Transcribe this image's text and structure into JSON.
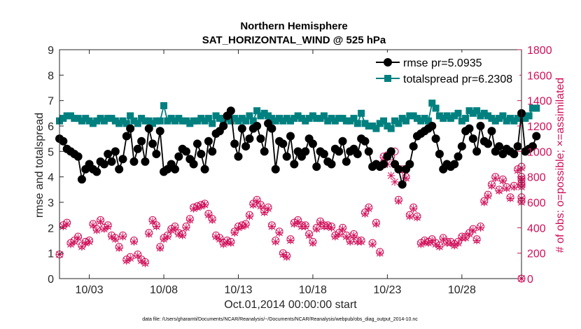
{
  "chart_data": {
    "type": "line",
    "title": "Northern Hemisphere",
    "subtitle": "SAT_HORIZONTAL_WIND @ 525 hPa",
    "xlabel": "Oct.01,2014 00:00:00 start",
    "ylabel_left": "rmse and totalspread",
    "ylabel_right": "# of obs: o=possible; ×=assimilated",
    "footnote": "data file: /Users/gharamti/Documents/NCAR/Reanalysis/~/Documents/NCAR/Reanalysis/webpub/obs_diag_output_2014-10.nc",
    "x_ticks": [
      {
        "day": 3,
        "label": "10/03"
      },
      {
        "day": 8,
        "label": "10/08"
      },
      {
        "day": 13,
        "label": "10/13"
      },
      {
        "day": 18,
        "label": "10/18"
      },
      {
        "day": 23,
        "label": "10/23"
      },
      {
        "day": 28,
        "label": "10/28"
      }
    ],
    "xlim": [
      1,
      32
    ],
    "ylim_left": [
      0,
      9
    ],
    "ylim_right": [
      0,
      1800
    ],
    "y_ticks_left": [
      "0",
      "1",
      "2",
      "3",
      "4",
      "5",
      "6",
      "7",
      "8",
      "9"
    ],
    "y_ticks_right": [
      "0",
      "200",
      "400",
      "600",
      "800",
      "1000",
      "1200",
      "1400",
      "1600",
      "1800"
    ],
    "legend_position": "top-right",
    "colors": {
      "rmse": "#000000",
      "totalspread": "#00807f",
      "obs": "#d0105a",
      "tick_text": "#262626"
    },
    "series": [
      {
        "name": "rmse",
        "label": "rmse pr=5.0935",
        "x_start": 1.0,
        "x_step": 0.25,
        "values": [
          5.5,
          5.4,
          5.1,
          5.0,
          4.9,
          4.8,
          3.9,
          4.3,
          4.5,
          4.3,
          4.2,
          4.6,
          4.5,
          4.9,
          4.6,
          5.0,
          4.3,
          4.7,
          5.6,
          5.9,
          4.6,
          5.1,
          5.4,
          4.6,
          5.9,
          5.3,
          4.9,
          5.8,
          4.2,
          4.3,
          4.5,
          4.3,
          4.8,
          5.1,
          5.0,
          4.7,
          4.5,
          5.3,
          4.9,
          4.3,
          5.4,
          5.0,
          5.7,
          5.8,
          6.0,
          6.4,
          6.6,
          5.3,
          4.8,
          5.9,
          5.2,
          5.5,
          5.9,
          6.0,
          5.5,
          5.0,
          6.1,
          5.9,
          4.3,
          5.4,
          5.3,
          4.8,
          5.6,
          4.5,
          5.0,
          4.8,
          5.0,
          5.5,
          5.3,
          4.4,
          5.0,
          4.9,
          4.6,
          4.5,
          5.1,
          5.0,
          5.4,
          4.6,
          5.0,
          5.1,
          4.9,
          5.5,
          5.4,
          5.0,
          4.4,
          4.5,
          4.4,
          4.5,
          4.8,
          5.0,
          4.5,
          4.3,
          3.7,
          4.3,
          4.5,
          5.2,
          5.6,
          5.7,
          5.8,
          5.9,
          6.0,
          5.5,
          4.9,
          4.3,
          4.5,
          4.4,
          4.5,
          4.8,
          5.2,
          5.8,
          5.9,
          5.5,
          5.0,
          6.0,
          5.4,
          5.3,
          5.8,
          5.0,
          5.2,
          4.9,
          5.1,
          5.0,
          4.9,
          5.2,
          6.5,
          5.0,
          5.1,
          5.2,
          5.6
        ]
      },
      {
        "name": "totalspread",
        "label": "totalspread pr=6.2308",
        "x_start": 1.0,
        "x_step": 0.25,
        "values": [
          6.2,
          6.3,
          6.4,
          6.4,
          6.3,
          6.3,
          6.2,
          6.3,
          6.2,
          6.1,
          6.2,
          6.3,
          6.2,
          6.3,
          6.3,
          6.2,
          6.1,
          6.2,
          6.1,
          6.4,
          6.2,
          6.1,
          6.3,
          6.2,
          6.2,
          6.1,
          6.2,
          6.2,
          6.8,
          6.2,
          6.3,
          6.2,
          6.3,
          6.2,
          6.2,
          6.1,
          6.2,
          6.2,
          6.3,
          6.2,
          6.3,
          6.1,
          6.4,
          6.3,
          6.2,
          6.3,
          6.2,
          6.3,
          6.2,
          6.3,
          6.2,
          6.4,
          6.2,
          6.6,
          6.4,
          6.5,
          6.4,
          6.3,
          6.2,
          6.3,
          6.2,
          6.3,
          6.2,
          6.3,
          6.4,
          6.3,
          6.2,
          6.3,
          6.4,
          6.3,
          6.3,
          6.4,
          6.2,
          6.3,
          6.2,
          6.3,
          6.3,
          6.2,
          6.2,
          6.3,
          6.1,
          6.5,
          6.1,
          6.0,
          6.0,
          5.9,
          6.1,
          6.2,
          6.0,
          5.9,
          6.2,
          6.1,
          6.3,
          6.2,
          6.4,
          6.4,
          6.3,
          6.2,
          6.3,
          6.2,
          6.9,
          6.7,
          6.4,
          6.3,
          6.4,
          6.3,
          6.4,
          6.5,
          6.2,
          6.3,
          6.6,
          6.5,
          6.6,
          6.4,
          6.5,
          6.4,
          6.3,
          6.2,
          6.3,
          6.4,
          6.2,
          6.3,
          6.2,
          6.3,
          6.4,
          6.3,
          6.4,
          6.7,
          6.7
        ]
      },
      {
        "name": "obs_possible",
        "marker": "o",
        "x_start": 1.0,
        "x_step": 0.25,
        "values": [
          190,
          420,
          440,
          280,
          300,
          330,
          260,
          290,
          300,
          430,
          390,
          460,
          400,
          420,
          340,
          320,
          250,
          340,
          150,
          170,
          300,
          190,
          150,
          130,
          360,
          460,
          420,
          250,
          320,
          340,
          390,
          410,
          360,
          350,
          410,
          470,
          560,
          570,
          580,
          590,
          510,
          470,
          340,
          320,
          280,
          300,
          290,
          370,
          410,
          420,
          430,
          500,
          590,
          620,
          580,
          530,
          560,
          420,
          300,
          370,
          200,
          180,
          310,
          440,
          460,
          420,
          420,
          350,
          290,
          400,
          450,
          420,
          420,
          410,
          340,
          360,
          400,
          340,
          300,
          350,
          300,
          300,
          520,
          560,
          280,
          440,
          210,
          960,
          970,
          960,
          1000,
          620,
          860,
          800,
          500,
          560,
          490,
          280,
          300,
          290,
          310,
          280,
          260,
          320,
          290,
          290,
          270,
          290,
          330,
          330,
          360,
          390,
          310,
          410,
          610,
          660,
          740,
          800,
          700,
          780,
          720,
          640,
          730,
          860,
          880,
          750,
          780,
          800,
          730,
          640,
          610,
          0
        ]
      },
      {
        "name": "obs_assimilated",
        "marker": "x",
        "x_start": 1.0,
        "x_step": 0.25,
        "values": [
          190,
          410,
          430,
          270,
          290,
          320,
          250,
          280,
          290,
          420,
          380,
          450,
          390,
          410,
          330,
          310,
          240,
          330,
          140,
          160,
          290,
          180,
          140,
          120,
          350,
          450,
          410,
          240,
          310,
          330,
          380,
          400,
          350,
          340,
          400,
          460,
          550,
          560,
          570,
          580,
          500,
          460,
          330,
          310,
          270,
          290,
          280,
          360,
          400,
          410,
          420,
          490,
          580,
          610,
          570,
          520,
          550,
          410,
          290,
          360,
          190,
          170,
          300,
          430,
          450,
          410,
          410,
          340,
          280,
          390,
          440,
          410,
          410,
          400,
          330,
          350,
          390,
          330,
          290,
          340,
          290,
          290,
          510,
          550,
          270,
          430,
          200,
          950,
          900,
          810,
          760,
          610,
          850,
          790,
          490,
          550,
          480,
          270,
          290,
          280,
          300,
          270,
          250,
          310,
          280,
          280,
          260,
          280,
          320,
          320,
          350,
          380,
          300,
          400,
          600,
          650,
          730,
          790,
          690,
          770,
          710,
          630,
          720,
          850,
          870,
          740,
          770,
          790,
          720,
          630,
          600,
          0
        ]
      }
    ]
  }
}
